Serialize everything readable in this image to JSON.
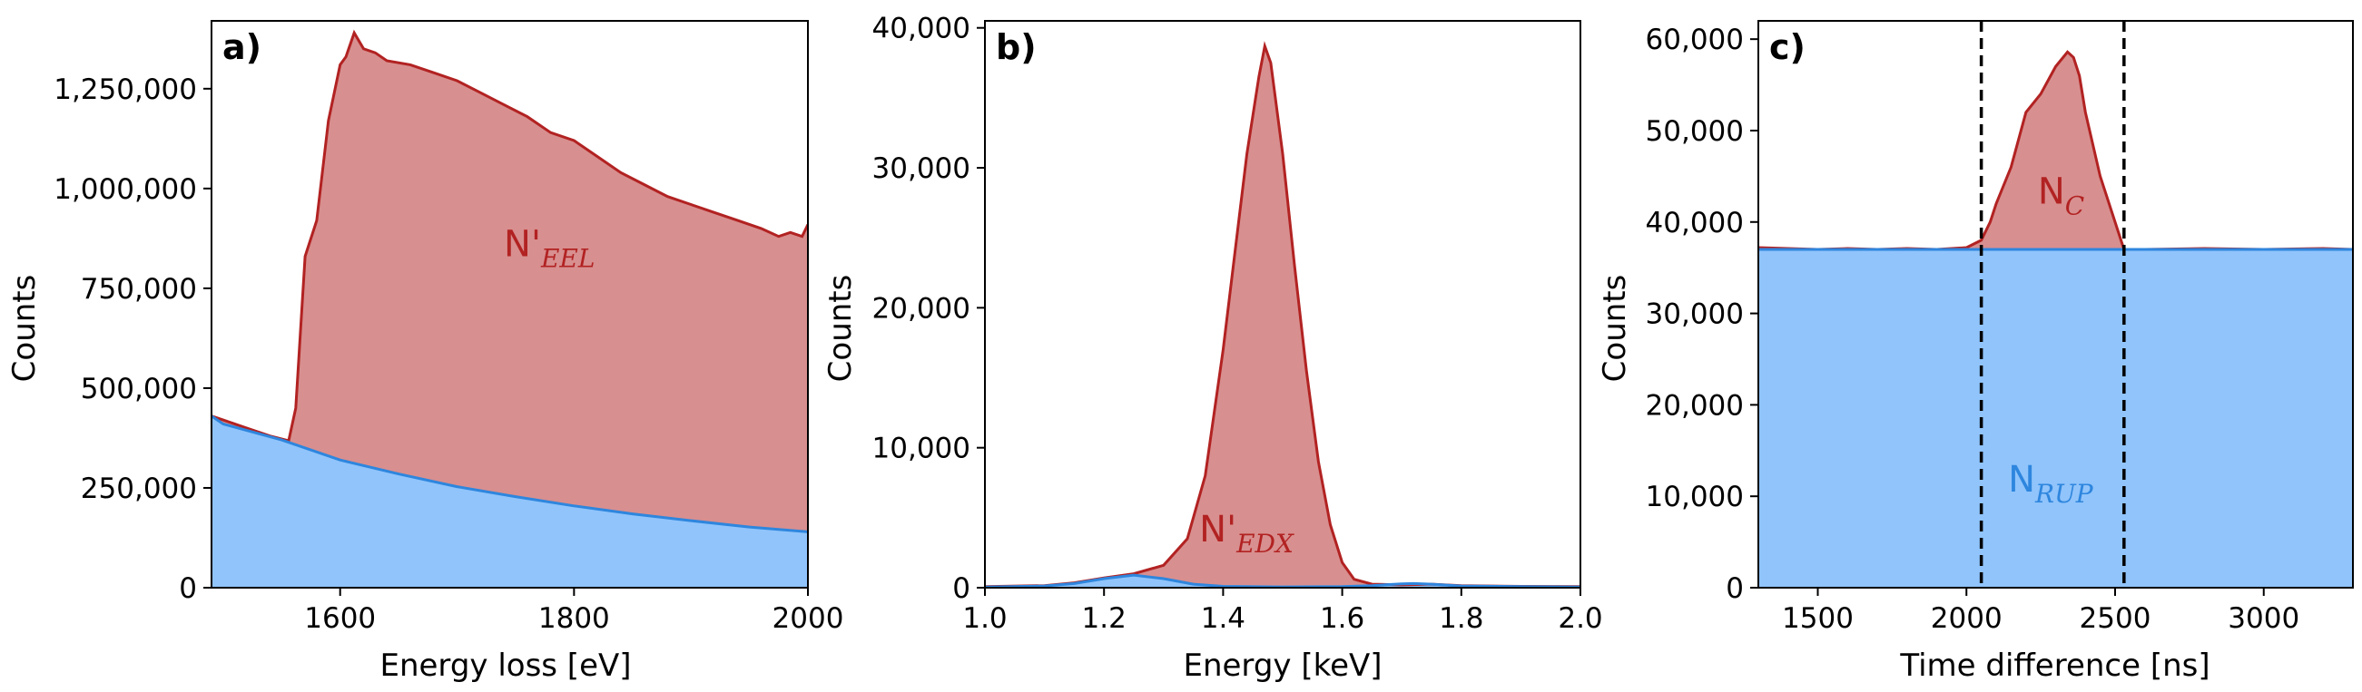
{
  "colors": {
    "signal_fill": "#d88f8f",
    "signal_line": "#b22222",
    "background_fill": "#90c4fb",
    "background_line": "#2e86de",
    "frame": "#000000"
  },
  "chart_data": [
    {
      "type": "area",
      "panel_label": "a)",
      "xlabel": "Energy loss [eV]",
      "ylabel": "Counts",
      "xlim": [
        1490,
        2000
      ],
      "ylim": [
        0,
        1420000
      ],
      "xticks": [
        1600,
        1800,
        2000
      ],
      "xtick_labels": [
        "1600",
        "1800",
        "2000"
      ],
      "yticks": [
        0,
        250000,
        500000,
        750000,
        1000000,
        1250000
      ],
      "ytick_labels": [
        "0",
        "250,000",
        "500,000",
        "750,000",
        "1,000,000",
        "1,250,000"
      ],
      "annotation": {
        "main": "N'",
        "sub": "EEL",
        "x": 1740,
        "y": 830000,
        "color": "#b22222"
      },
      "series": [
        {
          "name": "signal",
          "x": [
            1490,
            1500,
            1520,
            1540,
            1556,
            1562,
            1570,
            1580,
            1590,
            1600,
            1605,
            1612,
            1620,
            1630,
            1640,
            1660,
            1680,
            1700,
            1720,
            1740,
            1760,
            1780,
            1800,
            1820,
            1840,
            1860,
            1880,
            1900,
            1920,
            1940,
            1960,
            1975,
            1985,
            1995,
            2000
          ],
          "y": [
            430000,
            420000,
            400000,
            380000,
            368000,
            450000,
            830000,
            920000,
            1170000,
            1310000,
            1330000,
            1390000,
            1350000,
            1340000,
            1320000,
            1310000,
            1290000,
            1270000,
            1240000,
            1210000,
            1180000,
            1140000,
            1120000,
            1080000,
            1040000,
            1010000,
            980000,
            960000,
            940000,
            920000,
            900000,
            880000,
            890000,
            880000,
            910000
          ]
        },
        {
          "name": "background",
          "x": [
            1490,
            1500,
            1550,
            1600,
            1650,
            1700,
            1750,
            1800,
            1850,
            1900,
            1950,
            2000
          ],
          "y": [
            430000,
            410000,
            370000,
            320000,
            285000,
            253000,
            228000,
            205000,
            185000,
            168000,
            152000,
            140000
          ]
        }
      ]
    },
    {
      "type": "area",
      "panel_label": "b)",
      "xlabel": "Energy [keV]",
      "ylabel": "Counts",
      "xlim": [
        1.0,
        2.0
      ],
      "ylim": [
        0,
        40500
      ],
      "xticks": [
        1.0,
        1.2,
        1.4,
        1.6,
        1.8,
        2.0
      ],
      "xtick_labels": [
        "1.0",
        "1.2",
        "1.4",
        "1.6",
        "1.8",
        "2.0"
      ],
      "yticks": [
        0,
        10000,
        20000,
        30000,
        40000
      ],
      "ytick_labels": [
        "0",
        "10,000",
        "20,000",
        "30,000",
        "40,000"
      ],
      "annotation": {
        "main": "N'",
        "sub": "EDX",
        "x": 1.36,
        "y": 3300,
        "color": "#b22222"
      },
      "series": [
        {
          "name": "signal",
          "x": [
            1.0,
            1.1,
            1.15,
            1.2,
            1.25,
            1.3,
            1.34,
            1.37,
            1.4,
            1.42,
            1.44,
            1.46,
            1.47,
            1.48,
            1.5,
            1.52,
            1.54,
            1.56,
            1.58,
            1.6,
            1.62,
            1.65,
            1.7,
            1.75,
            1.8,
            1.9,
            2.0
          ],
          "y": [
            80,
            150,
            350,
            700,
            1000,
            1600,
            3500,
            8000,
            17000,
            24000,
            31000,
            36500,
            38700,
            37500,
            31000,
            23000,
            15500,
            9000,
            4500,
            1800,
            600,
            250,
            200,
            250,
            150,
            100,
            80
          ]
        },
        {
          "name": "background",
          "x": [
            1.0,
            1.1,
            1.15,
            1.2,
            1.25,
            1.3,
            1.35,
            1.4,
            1.5,
            1.6,
            1.65,
            1.7,
            1.72,
            1.75,
            1.8,
            1.9,
            2.0
          ],
          "y": [
            50,
            120,
            300,
            650,
            900,
            650,
            250,
            100,
            60,
            80,
            150,
            280,
            300,
            250,
            120,
            80,
            50
          ]
        }
      ]
    },
    {
      "type": "area",
      "panel_label": "c)",
      "xlabel": "Time difference [ns]",
      "ylabel": "Counts",
      "xlim": [
        1300,
        3300
      ],
      "ylim": [
        0,
        62000
      ],
      "xticks": [
        1500,
        2000,
        2500,
        3000
      ],
      "xtick_labels": [
        "1500",
        "2000",
        "2500",
        "3000"
      ],
      "yticks": [
        0,
        10000,
        20000,
        30000,
        40000,
        50000,
        60000
      ],
      "ytick_labels": [
        "0",
        "10,000",
        "20,000",
        "30,000",
        "40,000",
        "50,000",
        "60,000"
      ],
      "vlines": [
        2050,
        2530
      ],
      "annotations": [
        {
          "main": "N",
          "sub": "C",
          "x": 2240,
          "y": 42000,
          "color": "#b22222"
        },
        {
          "main": "N",
          "sub": "RUP",
          "x": 2140,
          "y": 10500,
          "color": "#2e86de"
        }
      ],
      "series": [
        {
          "name": "signal",
          "x": [
            1300,
            1400,
            1500,
            1600,
            1700,
            1800,
            1900,
            2000,
            2050,
            2080,
            2100,
            2150,
            2200,
            2250,
            2300,
            2340,
            2360,
            2380,
            2400,
            2450,
            2500,
            2530,
            2600,
            2800,
            3000,
            3200,
            3300
          ],
          "y": [
            37200,
            37100,
            37000,
            37100,
            37000,
            37100,
            37000,
            37200,
            38000,
            40000,
            42000,
            46000,
            52000,
            54000,
            57000,
            58600,
            58000,
            56000,
            52000,
            45000,
            40000,
            37000,
            37000,
            37100,
            37000,
            37100,
            37000
          ]
        },
        {
          "name": "background",
          "x": [
            1300,
            3300
          ],
          "y": [
            37000,
            37000
          ]
        }
      ]
    }
  ]
}
